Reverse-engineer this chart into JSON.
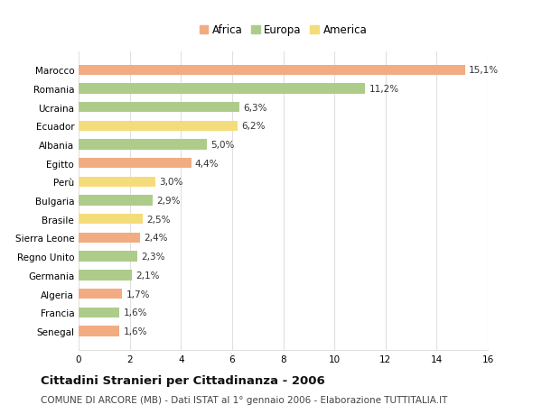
{
  "countries": [
    "Marocco",
    "Romania",
    "Ucraina",
    "Ecuador",
    "Albania",
    "Egitto",
    "Perù",
    "Bulgaria",
    "Brasile",
    "Sierra Leone",
    "Regno Unito",
    "Germania",
    "Algeria",
    "Francia",
    "Senegal"
  ],
  "values": [
    15.1,
    11.2,
    6.3,
    6.2,
    5.0,
    4.4,
    3.0,
    2.9,
    2.5,
    2.4,
    2.3,
    2.1,
    1.7,
    1.6,
    1.6
  ],
  "labels": [
    "15,1%",
    "11,2%",
    "6,3%",
    "6,2%",
    "5,0%",
    "4,4%",
    "3,0%",
    "2,9%",
    "2,5%",
    "2,4%",
    "2,3%",
    "2,1%",
    "1,7%",
    "1,6%",
    "1,6%"
  ],
  "continents": [
    "Africa",
    "Europa",
    "Europa",
    "America",
    "Europa",
    "Africa",
    "America",
    "Europa",
    "America",
    "Africa",
    "Europa",
    "Europa",
    "Africa",
    "Europa",
    "Africa"
  ],
  "colors": {
    "Africa": "#F2AC82",
    "Europa": "#ADCC8A",
    "America": "#F5DC7A"
  },
  "title": "Cittadini Stranieri per Cittadinanza - 2006",
  "subtitle": "COMUNE DI ARCORE (MB) - Dati ISTAT al 1° gennaio 2006 - Elaborazione TUTTITALIA.IT",
  "xlim": [
    0,
    16
  ],
  "xticks": [
    0,
    2,
    4,
    6,
    8,
    10,
    12,
    14,
    16
  ],
  "background_color": "#ffffff",
  "grid_color": "#e0e0e0",
  "bar_height": 0.55,
  "label_fontsize": 7.5,
  "tick_fontsize": 7.5,
  "ytick_fontsize": 7.5,
  "title_fontsize": 9.5,
  "subtitle_fontsize": 7.5,
  "legend_fontsize": 8.5
}
